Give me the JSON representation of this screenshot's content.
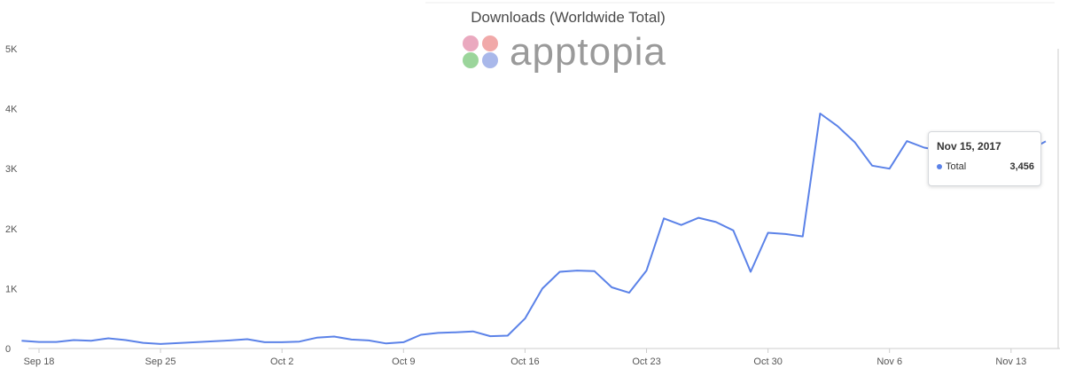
{
  "chart_data": {
    "type": "line",
    "title": "Downloads (Worldwide Total)",
    "xlabel": "",
    "ylabel": "",
    "ylim": [
      0,
      5000
    ],
    "y_ticks": [
      0,
      1000,
      2000,
      3000,
      4000,
      5000
    ],
    "y_tick_labels": [
      "0",
      "1K",
      "2K",
      "3K",
      "4K",
      "5K"
    ],
    "x_ticks": [
      "Sep 18",
      "Sep 25",
      "Oct 2",
      "Oct 9",
      "Oct 16",
      "Oct 23",
      "Oct 30",
      "Nov 6",
      "Nov 13"
    ],
    "x_range": [
      "2017-09-17",
      "2017-11-15"
    ],
    "grid": false,
    "legend": "none",
    "line_color": "#5b82e8",
    "series": [
      {
        "name": "Total",
        "x": [
          "2017-09-17",
          "2017-09-18",
          "2017-09-19",
          "2017-09-20",
          "2017-09-21",
          "2017-09-22",
          "2017-09-23",
          "2017-09-24",
          "2017-09-25",
          "2017-09-26",
          "2017-09-27",
          "2017-09-28",
          "2017-09-29",
          "2017-09-30",
          "2017-10-01",
          "2017-10-02",
          "2017-10-03",
          "2017-10-04",
          "2017-10-05",
          "2017-10-06",
          "2017-10-07",
          "2017-10-08",
          "2017-10-09",
          "2017-10-10",
          "2017-10-11",
          "2017-10-12",
          "2017-10-13",
          "2017-10-14",
          "2017-10-15",
          "2017-10-16",
          "2017-10-17",
          "2017-10-18",
          "2017-10-19",
          "2017-10-20",
          "2017-10-21",
          "2017-10-22",
          "2017-10-23",
          "2017-10-24",
          "2017-10-25",
          "2017-10-26",
          "2017-10-27",
          "2017-10-28",
          "2017-10-29",
          "2017-10-30",
          "2017-10-31",
          "2017-11-01",
          "2017-11-02",
          "2017-11-03",
          "2017-11-04",
          "2017-11-05",
          "2017-11-06",
          "2017-11-07",
          "2017-11-08",
          "2017-11-09",
          "2017-11-10",
          "2017-11-11",
          "2017-11-12",
          "2017-11-13",
          "2017-11-14",
          "2017-11-15"
        ],
        "values": [
          130,
          110,
          110,
          140,
          130,
          170,
          140,
          95,
          75,
          90,
          105,
          120,
          135,
          155,
          105,
          105,
          115,
          180,
          200,
          150,
          135,
          85,
          105,
          230,
          260,
          270,
          285,
          205,
          215,
          500,
          1000,
          1280,
          1300,
          1290,
          1020,
          930,
          1300,
          2170,
          2060,
          2180,
          2110,
          1970,
          1280,
          1930,
          1910,
          1870,
          3920,
          3710,
          3440,
          3050,
          3000,
          3460,
          3350,
          3300,
          3100,
          3000,
          3200,
          3300,
          3300,
          3456
        ]
      }
    ]
  },
  "watermark": {
    "logo_text": "apptopia",
    "colors": [
      "#e8a0b8",
      "#f0a0a0",
      "#90d090",
      "#a0b0e8"
    ]
  },
  "tooltip": {
    "date": "Nov 15, 2017",
    "series_label": "Total",
    "value": "3,456",
    "dot_color": "#5b82e8"
  }
}
